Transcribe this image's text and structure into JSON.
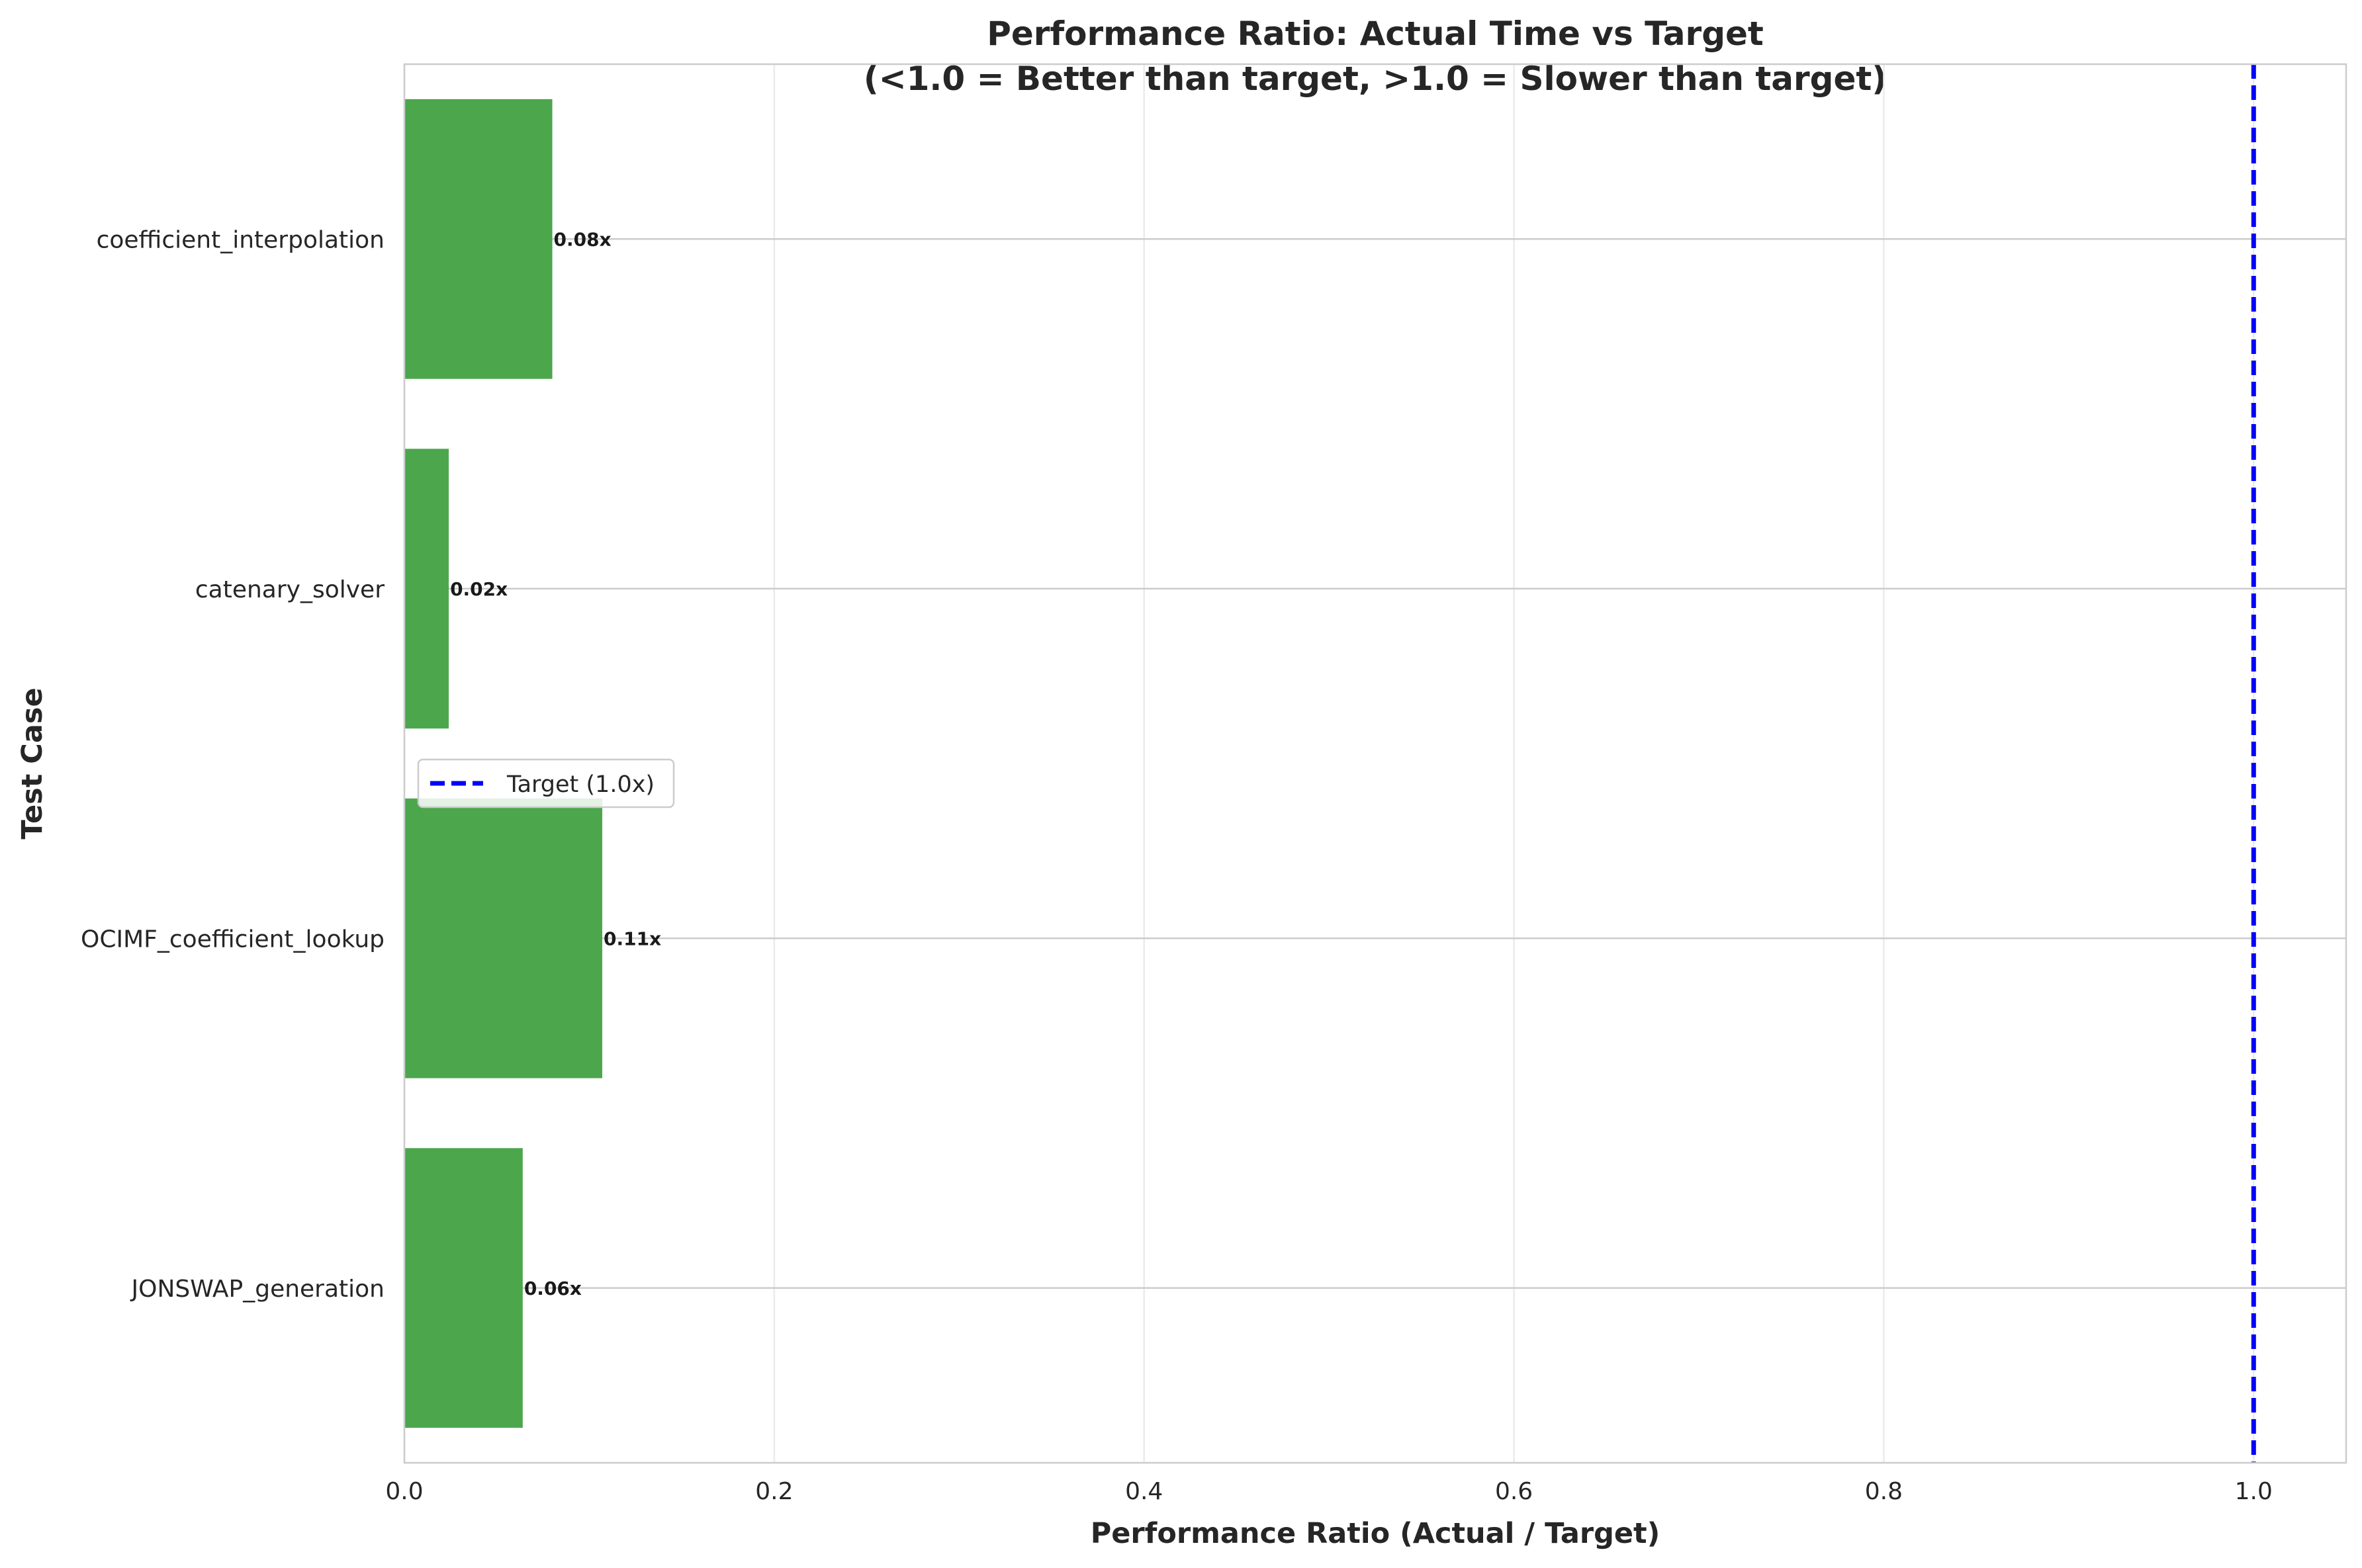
{
  "chart_data": {
    "type": "bar",
    "orientation": "horizontal",
    "title": "Performance Ratio: Actual Time vs Target",
    "subtitle": "(<1.0 = Better than target, >1.0 = Slower than target)",
    "xlabel": "Performance Ratio (Actual / Target)",
    "ylabel": "Test Case",
    "categories": [
      "coefficient_interpolation",
      "catenary_solver",
      "OCIMF_coefficient_lookup",
      "JONSWAP_generation"
    ],
    "values": [
      0.08,
      0.024,
      0.107,
      0.064
    ],
    "value_labels": [
      "0.08x",
      "0.02x",
      "0.11x",
      "0.06x"
    ],
    "xlim": [
      0,
      1.05
    ],
    "xticks": [
      0.0,
      0.2,
      0.4,
      0.6,
      0.8,
      1.0
    ],
    "xtick_labels": [
      "0.0",
      "0.2",
      "0.4",
      "0.6",
      "0.8",
      "1.0"
    ],
    "grid": true,
    "bar_color": "#4ca64c",
    "reference_line": {
      "value": 1.0,
      "color": "#0000ff",
      "style": "dashed",
      "label": "Target (1.0x)"
    },
    "legend": {
      "position": "center-left",
      "entries": [
        "Target (1.0x)"
      ]
    }
  }
}
